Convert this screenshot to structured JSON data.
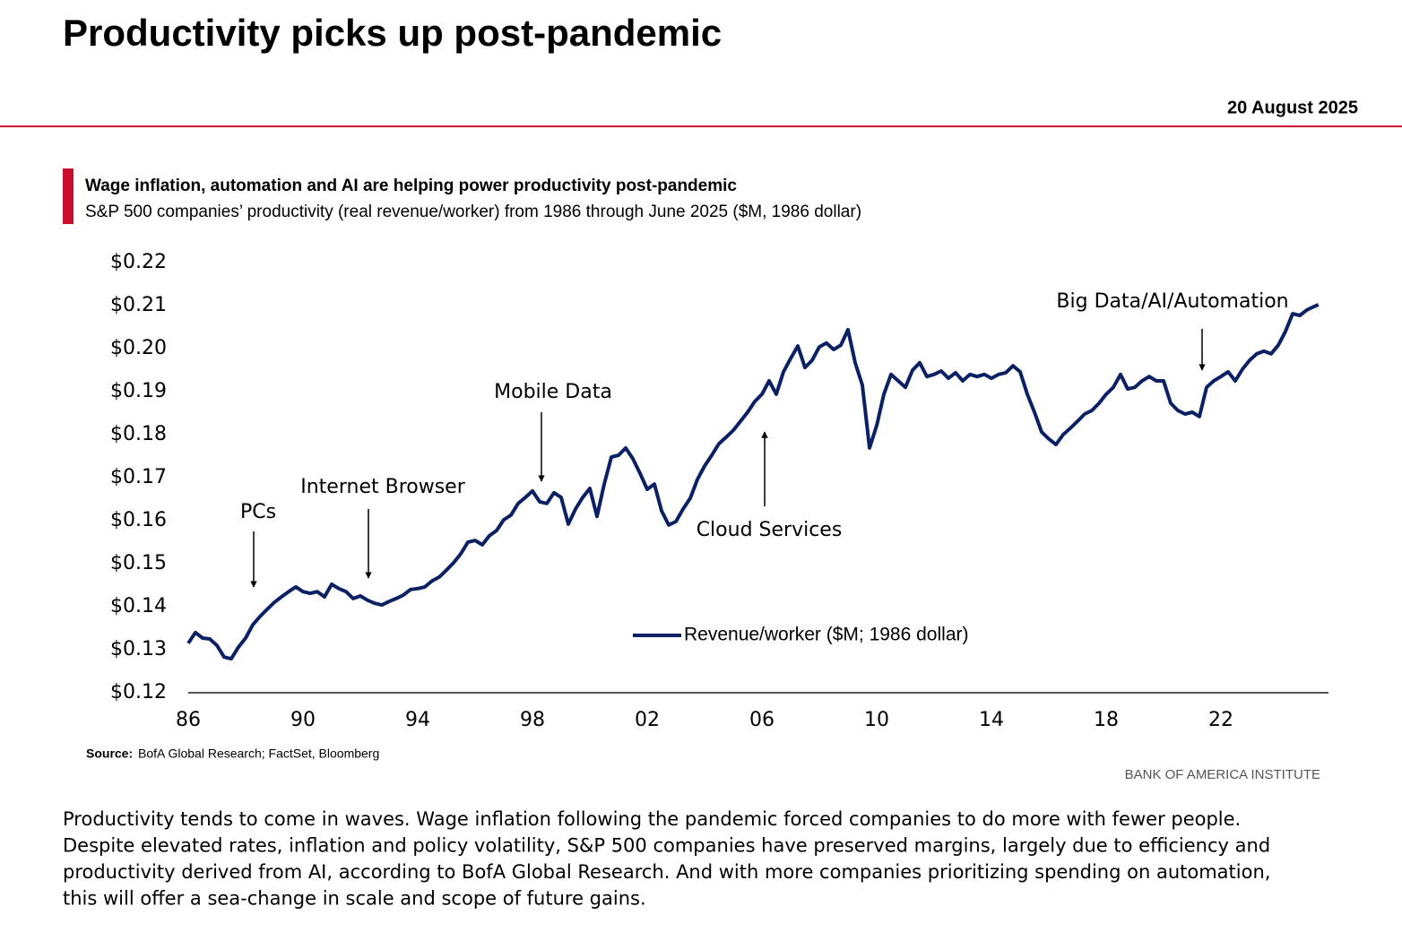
{
  "header": {
    "title": "Productivity picks up post-pandemic",
    "date": "20 August 2025"
  },
  "chart_data": {
    "type": "line",
    "title": "Wage inflation, automation and AI are helping power productivity post-pandemic",
    "subtitle": "S&P 500 companies’ productivity (real revenue/worker) from 1986 through June 2025 ($M, 1986 dollar)",
    "x": [
      1986,
      1986.25,
      1986.5,
      1986.75,
      1987,
      1987.25,
      1987.5,
      1987.75,
      1988,
      1988.25,
      1988.5,
      1988.75,
      1989,
      1989.25,
      1989.5,
      1989.75,
      1990,
      1990.25,
      1990.5,
      1990.75,
      1991,
      1991.25,
      1991.5,
      1991.75,
      1992,
      1992.25,
      1992.5,
      1992.75,
      1993,
      1993.25,
      1993.5,
      1993.75,
      1994,
      1994.25,
      1994.5,
      1994.75,
      1995,
      1995.25,
      1995.5,
      1995.75,
      1996,
      1996.25,
      1996.5,
      1996.75,
      1997,
      1997.25,
      1997.5,
      1997.75,
      1998,
      1998.25,
      1998.5,
      1998.75,
      1999,
      1999.25,
      1999.5,
      1999.75,
      2000,
      2000.25,
      2000.5,
      2000.75,
      2001,
      2001.25,
      2001.5,
      2001.75,
      2002,
      2002.25,
      2002.5,
      2002.75,
      2003,
      2003.25,
      2003.5,
      2003.75,
      2004,
      2004.25,
      2004.5,
      2004.75,
      2005,
      2005.25,
      2005.5,
      2005.75,
      2006,
      2006.25,
      2006.5,
      2006.75,
      2007,
      2007.25,
      2007.5,
      2007.75,
      2008,
      2008.25,
      2008.5,
      2008.75,
      2009,
      2009.25,
      2009.5,
      2009.75,
      2010,
      2010.25,
      2010.5,
      2010.75,
      2011,
      2011.25,
      2011.5,
      2011.75,
      2012,
      2012.25,
      2012.5,
      2012.75,
      2013,
      2013.25,
      2013.5,
      2013.75,
      2014,
      2014.25,
      2014.5,
      2014.75,
      2015,
      2015.25,
      2015.5,
      2015.75,
      2016,
      2016.25,
      2016.5,
      2016.75,
      2017,
      2017.25,
      2017.5,
      2017.75,
      2018,
      2018.25,
      2018.5,
      2018.75,
      2019,
      2019.25,
      2019.5,
      2019.75,
      2020,
      2020.25,
      2020.5,
      2020.75,
      2021,
      2021.25,
      2021.5,
      2021.75,
      2022,
      2022.25,
      2022.5,
      2022.75,
      2023,
      2023.25,
      2023.5,
      2023.75,
      2024,
      2024.25,
      2024.5,
      2024.75,
      2025,
      2025.25,
      2025.4
    ],
    "series": [
      {
        "name": "Revenue/worker ($M; 1986 dollar)",
        "color": "#0c2163",
        "values": [
          0.1315,
          0.134,
          0.1327,
          0.1325,
          0.131,
          0.1283,
          0.1279,
          0.1306,
          0.1327,
          0.1358,
          0.1377,
          0.1394,
          0.141,
          0.1423,
          0.1435,
          0.1446,
          0.1435,
          0.1431,
          0.1435,
          0.1423,
          0.1452,
          0.1442,
          0.1435,
          0.1419,
          0.1425,
          0.1415,
          0.1408,
          0.1404,
          0.1412,
          0.1419,
          0.1427,
          0.144,
          0.1442,
          0.1446,
          0.146,
          0.1469,
          0.1485,
          0.1502,
          0.1523,
          0.155,
          0.1554,
          0.1544,
          0.1565,
          0.1577,
          0.1602,
          0.1613,
          0.164,
          0.1654,
          0.1669,
          0.1644,
          0.164,
          0.1665,
          0.1654,
          0.1592,
          0.1627,
          0.1654,
          0.1675,
          0.161,
          0.1685,
          0.1748,
          0.1752,
          0.1769,
          0.1744,
          0.171,
          0.1673,
          0.1685,
          0.1623,
          0.159,
          0.1598,
          0.1627,
          0.1652,
          0.1696,
          0.1727,
          0.1752,
          0.1779,
          0.1794,
          0.181,
          0.1831,
          0.1852,
          0.1877,
          0.1894,
          0.1925,
          0.1894,
          0.1946,
          0.1977,
          0.2006,
          0.1956,
          0.1973,
          0.2004,
          0.2013,
          0.1998,
          0.2008,
          0.2044,
          0.1967,
          0.1915,
          0.1769,
          0.1821,
          0.1894,
          0.194,
          0.1925,
          0.191,
          0.195,
          0.1967,
          0.1935,
          0.194,
          0.1948,
          0.1931,
          0.1944,
          0.1925,
          0.194,
          0.1935,
          0.194,
          0.1931,
          0.194,
          0.1944,
          0.196,
          0.1946,
          0.1894,
          0.1852,
          0.1806,
          0.179,
          0.1777,
          0.18,
          0.1815,
          0.1831,
          0.1848,
          0.1856,
          0.1873,
          0.1894,
          0.191,
          0.194,
          0.1906,
          0.191,
          0.1925,
          0.1935,
          0.1925,
          0.1925,
          0.1873,
          0.1856,
          0.1848,
          0.1852,
          0.1842,
          0.191,
          0.1925,
          0.1935,
          0.1946,
          0.1925,
          0.1952,
          0.1973,
          0.1988,
          0.1994,
          0.1988,
          0.2008,
          0.204,
          0.2081,
          0.2077,
          0.209,
          0.2098,
          0.2102
        ]
      }
    ],
    "xlim": [
      1986,
      2025.75
    ],
    "ylim": [
      0.12,
      0.22
    ],
    "xticks": [
      {
        "value": 1986,
        "label": "86"
      },
      {
        "value": 1990,
        "label": "90"
      },
      {
        "value": 1994,
        "label": "94"
      },
      {
        "value": 1998,
        "label": "98"
      },
      {
        "value": 2002,
        "label": "02"
      },
      {
        "value": 2006,
        "label": "06"
      },
      {
        "value": 2010,
        "label": "10"
      },
      {
        "value": 2014,
        "label": "14"
      },
      {
        "value": 2018,
        "label": "18"
      },
      {
        "value": 2022,
        "label": "22"
      }
    ],
    "yticks": [
      {
        "value": 0.12,
        "label": "$0.12"
      },
      {
        "value": 0.13,
        "label": "$0.13"
      },
      {
        "value": 0.14,
        "label": "$0.14"
      },
      {
        "value": 0.15,
        "label": "$0.15"
      },
      {
        "value": 0.16,
        "label": "$0.16"
      },
      {
        "value": 0.17,
        "label": "$0.17"
      },
      {
        "value": 0.18,
        "label": "$0.18"
      },
      {
        "value": 0.19,
        "label": "$0.19"
      },
      {
        "value": 0.2,
        "label": "$0.20"
      },
      {
        "value": 0.21,
        "label": "$0.21"
      },
      {
        "value": 0.22,
        "label": "$0.22"
      }
    ],
    "annotations": [
      "PCs",
      "Internet Browser",
      "Mobile Data",
      "Cloud Services",
      "Big Data/AI/Automation"
    ],
    "grid": false
  },
  "source": {
    "label": "Source:",
    "text": "BofA Global Research; FactSet, Bloomberg"
  },
  "credit": "BANK OF AMERICA INSTITUTE",
  "body": [
    "Productivity tends to come in waves. Wage inflation following the pandemic forced companies to do more with fewer people.",
    "Despite elevated rates, inflation and policy volatility, S&P 500 companies have preserved margins, largely due to efficiency and",
    "productivity derived from AI, according to BofA Global Research. And with more companies prioritizing spending on automation,",
    "this will offer a sea-change in scale and scope of future gains."
  ]
}
